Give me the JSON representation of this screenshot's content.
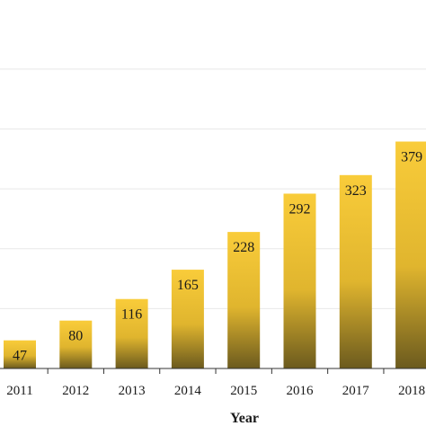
{
  "chart_data": {
    "type": "bar",
    "categories": [
      "2011",
      "2012",
      "2013",
      "2014",
      "2015",
      "2016",
      "2017",
      "2018"
    ],
    "values": [
      47,
      80,
      116,
      165,
      228,
      292,
      323,
      379
    ],
    "data_labels": [
      "47",
      "80",
      "116",
      "165",
      "228",
      "292",
      "323",
      "379"
    ],
    "xlabel": "Year",
    "ylabel": "",
    "ylim": [
      0,
      500
    ],
    "grid": true,
    "legend": "none",
    "colors": {
      "bar_top": "#F9CC3A",
      "bar_bottom": "#6B5A1E",
      "grid": "#E8E8E8",
      "axis": "#333333"
    }
  }
}
